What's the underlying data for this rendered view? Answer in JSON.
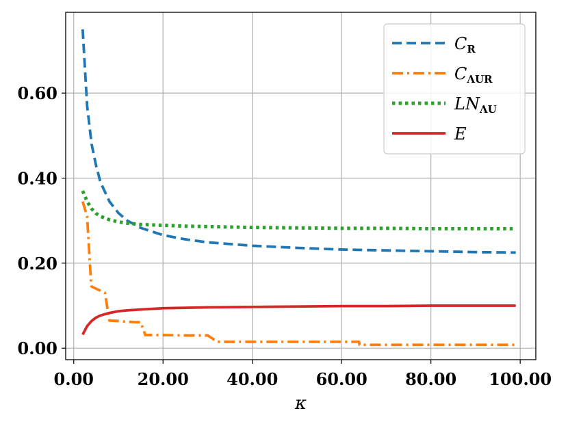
{
  "chart_data": {
    "type": "line",
    "xlabel": "κ",
    "ylabel": "",
    "title": "",
    "xlim": [
      -1.8,
      103.5
    ],
    "ylim": [
      -0.027,
      0.79
    ],
    "xticks": [
      0,
      20,
      40,
      60,
      80,
      100
    ],
    "xtick_labels": [
      "0.00",
      "20.00",
      "40.00",
      "60.00",
      "80.00",
      "100.00"
    ],
    "yticks": [
      0,
      0.2,
      0.4,
      0.6
    ],
    "ytick_labels": [
      "0.00",
      "0.20",
      "0.40",
      "0.60"
    ],
    "grid": true,
    "legend_position": "top-right",
    "series": [
      {
        "name": "C_R",
        "legend_main": "C",
        "legend_sub": "R",
        "color": "#1f77b4",
        "style": "dashed",
        "x": [
          2,
          3,
          4,
          5,
          6,
          8,
          10,
          12,
          15,
          20,
          25,
          30,
          40,
          50,
          60,
          70,
          80,
          90,
          99
        ],
        "y": [
          0.75,
          0.57,
          0.48,
          0.43,
          0.39,
          0.345,
          0.318,
          0.3,
          0.283,
          0.266,
          0.256,
          0.249,
          0.241,
          0.236,
          0.232,
          0.23,
          0.228,
          0.226,
          0.225
        ]
      },
      {
        "name": "C_ΛUR",
        "legend_main": "C",
        "legend_sub": "ΛUR",
        "color": "#ff7f0e",
        "style": "dashdot",
        "x": [
          2,
          3,
          3.9,
          4,
          5,
          6,
          7,
          7.9,
          8,
          10,
          12,
          15,
          15.9,
          16,
          20,
          25,
          30,
          31.9,
          32,
          40,
          50,
          60,
          63.9,
          64,
          70,
          80,
          90,
          99
        ],
        "y": [
          0.345,
          0.31,
          0.15,
          0.145,
          0.14,
          0.135,
          0.13,
          0.07,
          0.065,
          0.064,
          0.062,
          0.061,
          0.035,
          0.031,
          0.031,
          0.03,
          0.03,
          0.017,
          0.015,
          0.015,
          0.015,
          0.015,
          0.015,
          0.008,
          0.008,
          0.008,
          0.008,
          0.008
        ]
      },
      {
        "name": "LN_ΛU",
        "legend_main": "LN",
        "legend_sub": "ΛU",
        "color": "#2ca02c",
        "style": "dotted",
        "x": [
          2,
          3,
          4,
          5,
          6,
          8,
          10,
          12,
          15,
          20,
          25,
          30,
          40,
          50,
          60,
          70,
          80,
          90,
          99
        ],
        "y": [
          0.37,
          0.345,
          0.328,
          0.317,
          0.31,
          0.302,
          0.297,
          0.294,
          0.291,
          0.289,
          0.287,
          0.286,
          0.284,
          0.283,
          0.282,
          0.282,
          0.281,
          0.281,
          0.281
        ]
      },
      {
        "name": "E",
        "legend_main": "E",
        "legend_sub": "",
        "color": "#d62728",
        "style": "solid",
        "x": [
          2,
          3,
          4,
          5,
          6,
          8,
          10,
          12,
          15,
          20,
          25,
          30,
          40,
          50,
          60,
          70,
          80,
          90,
          99
        ],
        "y": [
          0.032,
          0.052,
          0.064,
          0.072,
          0.077,
          0.083,
          0.087,
          0.089,
          0.091,
          0.094,
          0.095,
          0.096,
          0.097,
          0.098,
          0.099,
          0.099,
          0.1,
          0.1,
          0.1
        ]
      }
    ]
  }
}
